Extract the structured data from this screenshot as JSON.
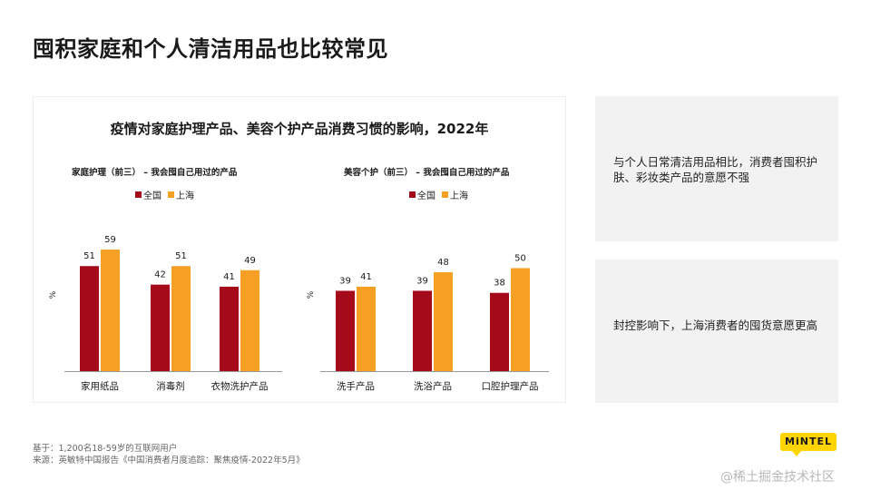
{
  "page": {
    "title": "囤积家庭和个人清洁用品也比较常见",
    "chart_heading": "疫情对家庭护理产品、美容个护产品消费习惯的影响，2022年",
    "base_note": "基于：1,200名18-59岁的互联网用户",
    "source_note": "来源：英敏特中国报告《中国消费者月度追踪：聚焦疫情-2022年5月》",
    "cards": [
      {
        "text": "与个人日常清洁用品相比，消费者囤积护肤、彩妆类产品的意愿不强"
      },
      {
        "text": "封控影响下，上海消费者的囤货意愿更高"
      }
    ],
    "logo_text": "MiNTEL",
    "watermark": "@稀土掘金技术社区"
  },
  "colors": {
    "national": "#a50a1a",
    "shanghai": "#f5a024",
    "logo": "#ffd400"
  },
  "chart_data": [
    {
      "type": "bar",
      "title": "家庭护理（前三） – 我会囤自己用过的产品",
      "ylabel": "%",
      "categories": [
        "家用纸品",
        "消毒剂",
        "衣物洗护产品"
      ],
      "series": [
        {
          "name": "全国",
          "values": [
            51,
            42,
            41
          ]
        },
        {
          "name": "上海",
          "values": [
            59,
            51,
            49
          ]
        }
      ],
      "ylim": [
        0,
        70
      ],
      "legend": "top-left",
      "grid": false
    },
    {
      "type": "bar",
      "title": "美容个护（前三） – 我会囤自己用过的产品",
      "ylabel": "%",
      "categories": [
        "洗手产品",
        "洗浴产品",
        "口腔护理产品"
      ],
      "series": [
        {
          "name": "全国",
          "values": [
            39,
            39,
            38
          ]
        },
        {
          "name": "上海",
          "values": [
            41,
            48,
            50
          ]
        }
      ],
      "ylim": [
        0,
        70
      ],
      "legend": "top-left",
      "grid": false
    }
  ]
}
